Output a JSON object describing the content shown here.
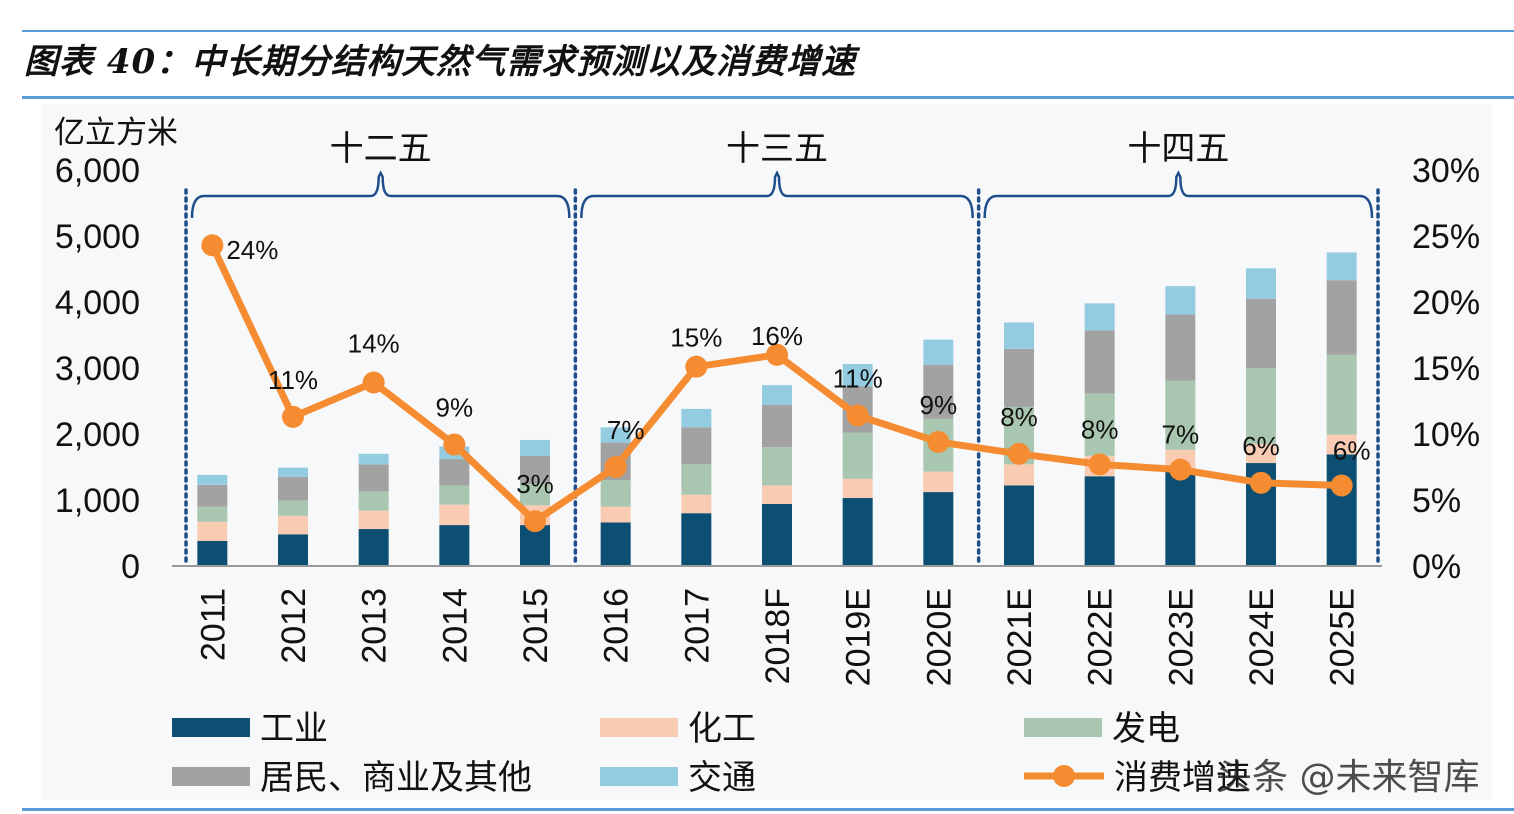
{
  "title": "图表 40：中长期分结构天然气需求预测以及消费增速",
  "watermark": "头条 @未来智库",
  "chart_data": {
    "type": "bar",
    "stacked": true,
    "y_unit_label": "亿立方米",
    "categories": [
      "2011",
      "2012",
      "2013",
      "2014",
      "2015",
      "2016",
      "2017",
      "2018F",
      "2019E",
      "2020E",
      "2021E",
      "2022E",
      "2023E",
      "2024E",
      "2025E"
    ],
    "ylim": [
      0,
      6000
    ],
    "yticks": [
      "0",
      "1,000",
      "2,000",
      "3,000",
      "4,000",
      "5,000",
      "6,000"
    ],
    "y2lim": [
      0,
      30
    ],
    "y2ticks": [
      "0%",
      "5%",
      "10%",
      "15%",
      "20%",
      "25%",
      "30%"
    ],
    "series": [
      {
        "name": "工业",
        "color": "#0d4f72",
        "values": [
          380,
          480,
          560,
          620,
          620,
          660,
          800,
          940,
          1030,
          1120,
          1220,
          1360,
          1460,
          1560,
          1690
        ]
      },
      {
        "name": "化工",
        "color": "#f9cbb2",
        "values": [
          290,
          280,
          280,
          310,
          300,
          240,
          280,
          280,
          290,
          310,
          320,
          310,
          300,
          290,
          300
        ]
      },
      {
        "name": "发电",
        "color": "#a9c6b0",
        "values": [
          230,
          230,
          290,
          290,
          320,
          400,
          460,
          580,
          700,
          800,
          870,
          940,
          1050,
          1150,
          1210
        ]
      },
      {
        "name": "居民、商业及其他",
        "color": "#a2a2a2",
        "values": [
          330,
          360,
          410,
          400,
          430,
          570,
          560,
          640,
          700,
          820,
          880,
          960,
          1000,
          1050,
          1130
        ]
      },
      {
        "name": "交通",
        "color": "#93cce1",
        "values": [
          150,
          140,
          160,
          190,
          240,
          230,
          280,
          300,
          340,
          380,
          400,
          410,
          430,
          460,
          420
        ]
      }
    ],
    "line": {
      "name": "消费增速",
      "color": "#f58c32",
      "values": [
        24.3,
        11.3,
        13.9,
        9.2,
        3.4,
        7.5,
        15.1,
        16.0,
        11.4,
        9.4,
        8.5,
        7.7,
        7.3,
        6.3,
        6.1
      ],
      "labels": [
        "24%",
        "11%",
        "14%",
        "9%",
        "3%",
        "7%",
        "15%",
        "16%",
        "11%",
        "9%",
        "8%",
        "8%",
        "7%",
        "6%",
        "6%"
      ]
    },
    "periods": [
      {
        "label": "十二五",
        "start": 0,
        "end": 4
      },
      {
        "label": "十三五",
        "start": 5,
        "end": 9
      },
      {
        "label": "十四五",
        "start": 10,
        "end": 14
      }
    ]
  }
}
